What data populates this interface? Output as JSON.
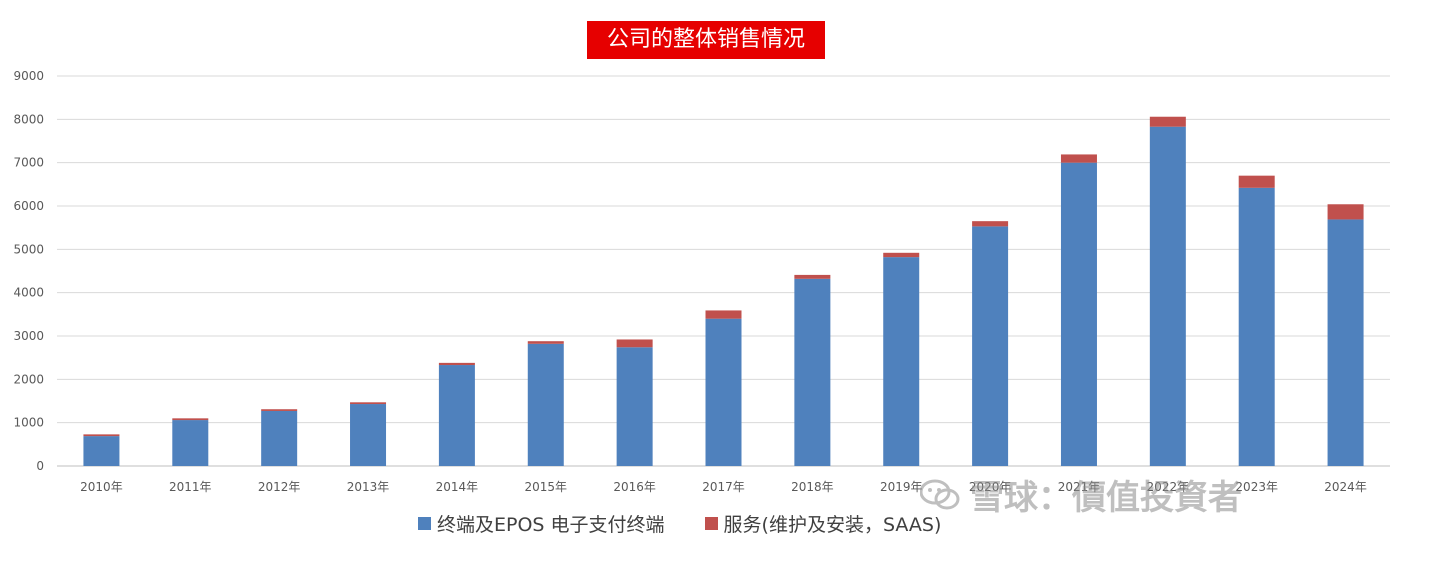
{
  "chart_data": {
    "type": "bar",
    "stacked": true,
    "title": "公司的整体销售情况",
    "categories": [
      "2010年",
      "2011年",
      "2012年",
      "2013年",
      "2014年",
      "2015年",
      "2016年",
      "2017年",
      "2018年",
      "2019年",
      "2020年",
      "2021年",
      "2022年",
      "2023年",
      "2024年"
    ],
    "series": [
      {
        "name": "终端及EPOS 电子支付终端",
        "color": "#4f81bd",
        "values": [
          690,
          1060,
          1270,
          1430,
          2330,
          2820,
          2740,
          3400,
          4320,
          4820,
          5530,
          7000,
          7830,
          6420,
          5690
        ]
      },
      {
        "name": "服务(维护及安装，SAAS)",
        "color": "#c0504d",
        "values": [
          40,
          40,
          40,
          40,
          50,
          60,
          180,
          190,
          90,
          100,
          120,
          190,
          230,
          280,
          350
        ]
      }
    ],
    "ylim": [
      0,
      9000
    ],
    "yticks": [
      0,
      1000,
      2000,
      3000,
      4000,
      5000,
      6000,
      7000,
      8000,
      9000
    ],
    "grid": true,
    "legend_position": "bottom"
  },
  "legend": {
    "series1_label": "终端及EPOS 电子支付终端",
    "series2_label": "服务(维护及安装，SAAS)"
  },
  "watermark": {
    "text": "雪球：價值投資者"
  }
}
